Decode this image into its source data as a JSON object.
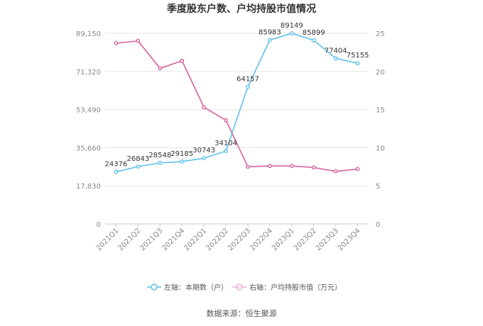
{
  "colors": {
    "left_series": "#5bc0eb",
    "right_series": "#d6609e",
    "grid": "#e6e6e6",
    "axis_text": "#888888"
  },
  "chart_data": {
    "type": "line",
    "title": "季度股东户数、户均持股市值情况",
    "categories": [
      "2021Q1",
      "2021Q2",
      "2021Q3",
      "2021Q4",
      "2022Q1",
      "2022Q2",
      "2022Q3",
      "2022Q4",
      "2023Q1",
      "2023Q2",
      "2023Q3",
      "2023Q4"
    ],
    "left_axis": {
      "ylim": [
        0,
        89150
      ],
      "ticks": [
        0,
        17830,
        35660,
        53490,
        71320,
        89150
      ],
      "tick_labels": [
        "0",
        "17,830",
        "35,660",
        "53,490",
        "71,320",
        "89,150"
      ]
    },
    "right_axis": {
      "ylim": [
        0,
        25
      ],
      "ticks": [
        0,
        5,
        10,
        15,
        20,
        25
      ],
      "tick_labels": [
        "0",
        "5",
        "10",
        "15",
        "20",
        "25"
      ]
    },
    "series": [
      {
        "name": "左轴：本期数（户）",
        "axis": "left",
        "values": [
          24376,
          26843,
          28548,
          29185,
          30743,
          34104,
          64157,
          85983,
          89149,
          85899,
          77404,
          75155
        ],
        "labels": [
          "24376",
          "26843",
          "28548",
          "29185",
          "30743",
          "34104",
          "64157",
          "85983",
          "89149",
          "85899",
          "77404",
          "75155"
        ]
      },
      {
        "name": "右轴：户均持股市值（万元）",
        "axis": "right",
        "values": [
          23.7,
          24.0,
          20.4,
          21.4,
          15.3,
          13.6,
          7.5,
          7.6,
          7.6,
          7.4,
          6.9,
          7.2
        ]
      }
    ],
    "grid": true,
    "legend": "bottom"
  },
  "footer": {
    "source": "数据来源：恒生聚源"
  }
}
